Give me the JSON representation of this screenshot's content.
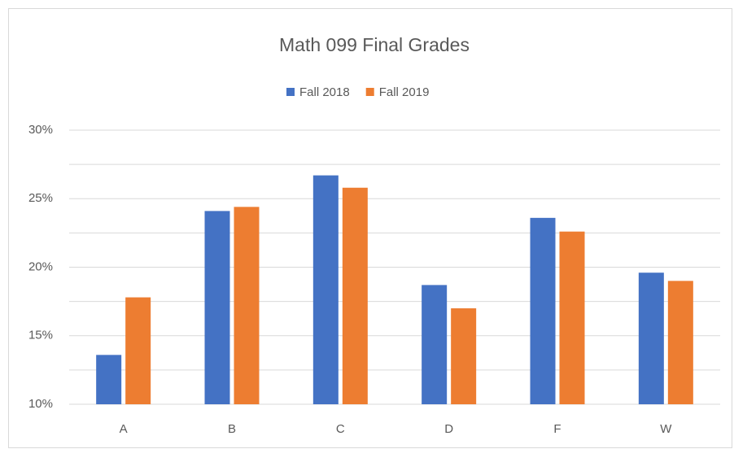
{
  "chart_data": {
    "type": "bar",
    "title": "Math 099 Final Grades",
    "categories": [
      "A",
      "B",
      "C",
      "D",
      "F",
      "W"
    ],
    "series": [
      {
        "name": "Fall 2018",
        "color": "#4472c4",
        "values": [
          13.6,
          24.1,
          26.7,
          18.7,
          23.6,
          19.6
        ]
      },
      {
        "name": "Fall 2019",
        "color": "#ed7d31",
        "values": [
          17.8,
          24.4,
          25.8,
          17.0,
          22.6,
          19.0
        ]
      }
    ],
    "ylim": [
      10,
      30
    ],
    "yticks": [
      {
        "value": 10,
        "label": "10%"
      },
      {
        "value": 15,
        "label": "15%"
      },
      {
        "value": 20,
        "label": "20%"
      },
      {
        "value": 25,
        "label": "25%"
      },
      {
        "value": 30,
        "label": "30%"
      }
    ],
    "y_minor_ticks": [
      12.5,
      17.5,
      22.5,
      27.5
    ],
    "grid": true,
    "legend": "top"
  }
}
